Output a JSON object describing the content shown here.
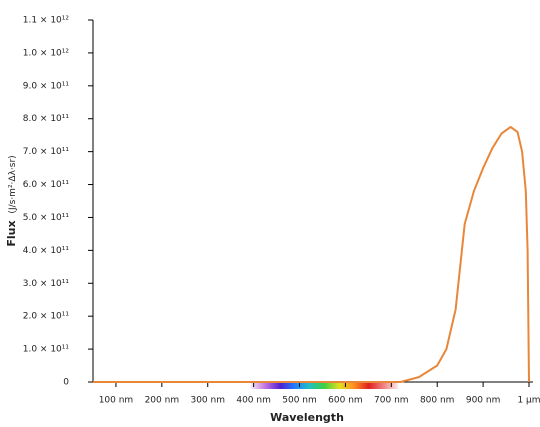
{
  "chart_data": {
    "type": "line",
    "x_label": "Wavelength",
    "y_label": "Flux",
    "y_unit": "(J/s·m²·Δλ·sr)",
    "xlim": [
      50,
      1000
    ],
    "ylim": [
      0,
      1100000000000
    ],
    "xticks": [
      {
        "value": 100,
        "label": "100 nm"
      },
      {
        "value": 200,
        "label": "200 nm"
      },
      {
        "value": 300,
        "label": "300 nm"
      },
      {
        "value": 400,
        "label": "400 nm"
      },
      {
        "value": 500,
        "label": "500 nm"
      },
      {
        "value": 600,
        "label": "600 nm"
      },
      {
        "value": 700,
        "label": "700 nm"
      },
      {
        "value": 800,
        "label": "800 nm"
      },
      {
        "value": 900,
        "label": "900 nm"
      },
      {
        "value": 1000,
        "label": "1 µm"
      }
    ],
    "yticks": [
      0,
      {
        "value": 100000000000,
        "label": "1.0 × 10¹¹"
      },
      {
        "value": 200000000000,
        "label": "2.0 × 10¹¹"
      },
      {
        "value": 300000000000,
        "label": "3.0 × 10¹¹"
      },
      {
        "value": 400000000000,
        "label": "4.0 × 10¹¹"
      },
      {
        "value": 500000000000,
        "label": "5.0 × 10¹¹"
      },
      {
        "value": 600000000000,
        "label": "6.0 × 10¹¹"
      },
      {
        "value": 700000000000,
        "label": "7.0 × 10¹¹"
      },
      {
        "value": 800000000000,
        "label": "8.0 × 10¹¹"
      },
      {
        "value": 900000000000,
        "label": "9.0 × 10¹¹"
      },
      {
        "value": 1000000000000,
        "label": "1.0 × 10¹²"
      },
      {
        "value": 1100000000000,
        "label": "1.1 × 10¹²"
      }
    ],
    "x": [
      50,
      700,
      720,
      760,
      800,
      820,
      840,
      860,
      880,
      900,
      920,
      940,
      960,
      975,
      985,
      993,
      997,
      1000
    ],
    "series": [
      {
        "color": "#e8873a",
        "values": [
          0,
          0,
          0,
          15000000000,
          50000000000,
          100000000000,
          220000000000,
          480000000000,
          580000000000,
          650000000000,
          710000000000,
          755000000000,
          775000000000,
          760000000000,
          700000000000,
          580000000000,
          400000000000,
          0
        ]
      }
    ]
  }
}
